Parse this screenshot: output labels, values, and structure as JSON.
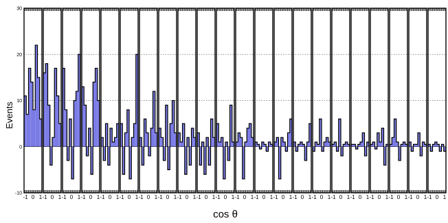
{
  "chart_data": {
    "type": "bar",
    "xlabel": "cos θ",
    "ylabel": "Events",
    "ylim": [
      -10,
      30
    ],
    "xlim": [
      -1,
      1
    ],
    "yticks": [
      -10,
      0,
      10,
      20,
      30
    ],
    "xtick_labels": [
      "-1",
      "0",
      "1"
    ],
    "grid": "dotted horizontal at 10, 20",
    "panel_count": 22,
    "bins_per_panel": 8,
    "colors": {
      "fill": "#7b7be6",
      "line": "#000000",
      "frame": "#000000",
      "grid": "#666666",
      "edge_marker": "#e8d84a"
    },
    "panels": [
      {
        "values": [
          11,
          7,
          17,
          14,
          8,
          22,
          15,
          6
        ]
      },
      {
        "values": [
          16,
          18,
          9,
          -4,
          2,
          17,
          11,
          5
        ]
      },
      {
        "values": [
          17,
          8,
          -3,
          6,
          -7,
          10,
          12,
          20
        ]
      },
      {
        "values": [
          13,
          9,
          -2,
          4,
          -6,
          14,
          17,
          10
        ]
      },
      {
        "values": [
          2,
          -3,
          5,
          -4,
          4,
          1,
          2,
          5
        ]
      },
      {
        "values": [
          5,
          -6,
          3,
          8,
          -7,
          2,
          5,
          20
        ]
      },
      {
        "values": [
          2,
          -4,
          6,
          3,
          -2,
          4,
          12,
          3
        ]
      },
      {
        "values": [
          4,
          2,
          -3,
          9,
          -5,
          5,
          10,
          3
        ]
      },
      {
        "values": [
          3,
          1,
          5,
          -6,
          2,
          -4,
          4,
          2
        ]
      },
      {
        "values": [
          3,
          -4,
          1,
          -6,
          2,
          -4,
          6,
          2
        ]
      },
      {
        "values": [
          5,
          1,
          2,
          -7,
          1,
          -3,
          9,
          1
        ]
      },
      {
        "values": [
          1,
          3,
          2,
          -7,
          1,
          4,
          5,
          2
        ]
      },
      {
        "values": [
          1,
          0.5,
          -0.5,
          1,
          0.5,
          -1,
          1,
          0.5
        ]
      },
      {
        "values": [
          1,
          2,
          -7,
          2,
          1,
          -1,
          3,
          6
        ]
      },
      {
        "values": [
          1,
          -1,
          0.5,
          1,
          0.5,
          -3,
          1,
          5
        ]
      },
      {
        "values": [
          -1,
          1,
          0.5,
          6,
          -1,
          1,
          2,
          1
        ]
      },
      {
        "values": [
          0.5,
          1,
          -1,
          6,
          -2,
          0.5,
          1,
          0.5
        ]
      },
      {
        "values": [
          0.5,
          0.5,
          -0.5,
          0.5,
          1,
          3,
          -2,
          1
        ]
      },
      {
        "values": [
          0.5,
          1,
          -0.5,
          3,
          1,
          4,
          -4,
          0.5
        ]
      },
      {
        "values": [
          0.5,
          2,
          6,
          1,
          -3,
          0.5,
          1,
          0.5
        ]
      },
      {
        "values": [
          1,
          -1,
          0.5,
          0.5,
          3,
          -2,
          1,
          0.5
        ]
      },
      {
        "values": [
          0.5,
          -1,
          0.5,
          1,
          0.5,
          -1,
          0.5,
          -1
        ]
      }
    ]
  }
}
